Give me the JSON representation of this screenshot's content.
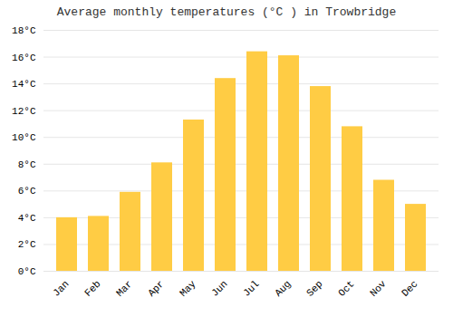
{
  "chart_data": {
    "type": "bar",
    "title": "Average monthly temperatures (°C ) in Trowbridge",
    "categories": [
      "Jan",
      "Feb",
      "Mar",
      "Apr",
      "May",
      "Jun",
      "Jul",
      "Aug",
      "Sep",
      "Oct",
      "Nov",
      "Dec"
    ],
    "values": [
      4.0,
      4.1,
      5.9,
      8.1,
      11.3,
      14.4,
      16.4,
      16.1,
      13.8,
      10.8,
      6.8,
      5.0
    ],
    "color": "#FFCC44",
    "ylim": [
      0,
      18
    ],
    "yticks": [
      {
        "value": 0,
        "label": "0°C"
      },
      {
        "value": 2,
        "label": "2°C"
      },
      {
        "value": 4,
        "label": "4°C"
      },
      {
        "value": 6,
        "label": "6°C"
      },
      {
        "value": 8,
        "label": "8°C"
      },
      {
        "value": 10,
        "label": "10°C"
      },
      {
        "value": 12,
        "label": "12°C"
      },
      {
        "value": 14,
        "label": "14°C"
      },
      {
        "value": 16,
        "label": "16°C"
      },
      {
        "value": 18,
        "label": "18°C"
      }
    ],
    "grid": true
  }
}
